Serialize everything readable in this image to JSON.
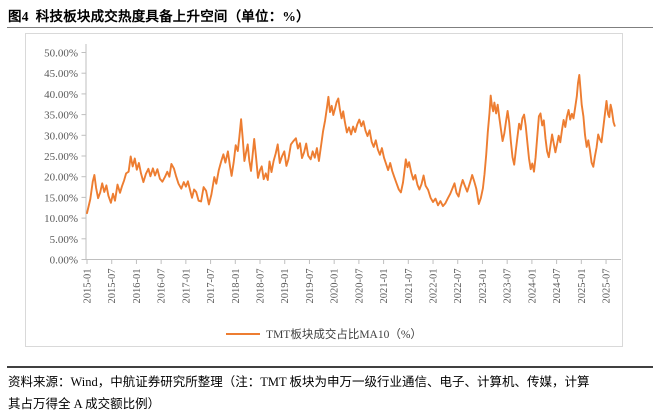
{
  "figure": {
    "title": "图4  科技板块成交热度具备上升空间（单位：%）"
  },
  "chart_data": {
    "type": "line",
    "title": "图4 科技板块成交热度具备上升空间",
    "unit": "%",
    "xlabel": "",
    "ylabel": "",
    "ylim": [
      0,
      50
    ],
    "grid": false,
    "legend_position": "bottom",
    "colors": {
      "line": "#ED7D31",
      "axis": "#BFBFBF",
      "tick_label": "#595959"
    },
    "y_ticks": [
      {
        "value": 0,
        "label": "0.00%"
      },
      {
        "value": 5,
        "label": "5.00%"
      },
      {
        "value": 10,
        "label": "10.00%"
      },
      {
        "value": 15,
        "label": "15.00%"
      },
      {
        "value": 20,
        "label": "20.00%"
      },
      {
        "value": 25,
        "label": "25.00%"
      },
      {
        "value": 30,
        "label": "30.00%"
      },
      {
        "value": 35,
        "label": "35.00%"
      },
      {
        "value": 40,
        "label": "40.00%"
      },
      {
        "value": 45,
        "label": "45.00%"
      },
      {
        "value": 50,
        "label": "50.00%"
      }
    ],
    "x_ticks": [
      {
        "month": 0,
        "label": "2015-01"
      },
      {
        "month": 6,
        "label": "2015-07"
      },
      {
        "month": 12,
        "label": "2016-01"
      },
      {
        "month": 18,
        "label": "2016-07"
      },
      {
        "month": 24,
        "label": "2017-01"
      },
      {
        "month": 30,
        "label": "2017-07"
      },
      {
        "month": 36,
        "label": "2018-01"
      },
      {
        "month": 42,
        "label": "2018-07"
      },
      {
        "month": 48,
        "label": "2019-01"
      },
      {
        "month": 54,
        "label": "2019-07"
      },
      {
        "month": 60,
        "label": "2020-01"
      },
      {
        "month": 66,
        "label": "2020-07"
      },
      {
        "month": 72,
        "label": "2021-01"
      },
      {
        "month": 78,
        "label": "2021-07"
      },
      {
        "month": 84,
        "label": "2022-01"
      },
      {
        "month": 90,
        "label": "2022-07"
      },
      {
        "month": 96,
        "label": "2023-01"
      },
      {
        "month": 102,
        "label": "2023-07"
      },
      {
        "month": 108,
        "label": "2024-01"
      },
      {
        "month": 114,
        "label": "2024-07"
      },
      {
        "month": 120,
        "label": "2025-01"
      },
      {
        "month": 126,
        "label": "2025-07"
      }
    ],
    "series": [
      {
        "name": "TMT板块成交占比MA10（%）",
        "color": "#ED7D31",
        "x_unit": "months since 2015-01",
        "points": [
          [
            0,
            11.2
          ],
          [
            0.8,
            14.6
          ],
          [
            1.4,
            18.9
          ],
          [
            1.8,
            20.4
          ],
          [
            2.2,
            17.3
          ],
          [
            2.7,
            14.8
          ],
          [
            3.2,
            16.2
          ],
          [
            3.7,
            18.4
          ],
          [
            4.2,
            16.3
          ],
          [
            4.7,
            17.9
          ],
          [
            5.2,
            15.4
          ],
          [
            5.8,
            13.7
          ],
          [
            6.3,
            15.9
          ],
          [
            6.8,
            14.2
          ],
          [
            7.4,
            18.1
          ],
          [
            8,
            16.1
          ],
          [
            8.5,
            17.7
          ],
          [
            9,
            19.1
          ],
          [
            9.5,
            20.8
          ],
          [
            10.1,
            21.2
          ],
          [
            10.6,
            24.9
          ],
          [
            11.1,
            22.5
          ],
          [
            11.6,
            24.4
          ],
          [
            12.1,
            21.7
          ],
          [
            12.6,
            23.3
          ],
          [
            13.1,
            20.8
          ],
          [
            13.7,
            18.7
          ],
          [
            14.3,
            20.7
          ],
          [
            14.9,
            21.9
          ],
          [
            15.4,
            20.1
          ],
          [
            16,
            22
          ],
          [
            16.5,
            20.3
          ],
          [
            17.1,
            21.8
          ],
          [
            17.7,
            19.5
          ],
          [
            18.3,
            18.8
          ],
          [
            18.9,
            19.9
          ],
          [
            19.5,
            21.2
          ],
          [
            20,
            20
          ],
          [
            20.5,
            23.1
          ],
          [
            21.1,
            22
          ],
          [
            21.6,
            20.2
          ],
          [
            22.2,
            18.3
          ],
          [
            22.9,
            17.1
          ],
          [
            23.5,
            18.7
          ],
          [
            24,
            17.6
          ],
          [
            24.5,
            18.9
          ],
          [
            25,
            16.8
          ],
          [
            25.5,
            14.9
          ],
          [
            26,
            16.9
          ],
          [
            26.5,
            16.3
          ],
          [
            27.1,
            14.2
          ],
          [
            27.7,
            14
          ],
          [
            28.3,
            17.5
          ],
          [
            28.9,
            16.6
          ],
          [
            29.6,
            13.3
          ],
          [
            30.2,
            15.7
          ],
          [
            30.9,
            19.9
          ],
          [
            31.4,
            18.3
          ],
          [
            32,
            21.6
          ],
          [
            32.6,
            23.8
          ],
          [
            33.1,
            25.4
          ],
          [
            33.6,
            23.4
          ],
          [
            34.2,
            26.1
          ],
          [
            34.7,
            22.7
          ],
          [
            35.1,
            20.2
          ],
          [
            35.6,
            23.5
          ],
          [
            36.1,
            27.6
          ],
          [
            36.6,
            26.2
          ],
          [
            37,
            29.7
          ],
          [
            37.4,
            33.9
          ],
          [
            37.8,
            29.3
          ],
          [
            38.2,
            23.8
          ],
          [
            38.6,
            25.8
          ],
          [
            39,
            27.8
          ],
          [
            39.4,
            23.9
          ],
          [
            39.8,
            21.4
          ],
          [
            40.2,
            25.2
          ],
          [
            40.6,
            29.1
          ],
          [
            41,
            25.1
          ],
          [
            41.5,
            19.7
          ],
          [
            42,
            21.6
          ],
          [
            42.4,
            22.5
          ],
          [
            42.9,
            19.4
          ],
          [
            43.4,
            20.8
          ],
          [
            43.9,
            19.2
          ],
          [
            44.3,
            23.7
          ],
          [
            44.8,
            21.1
          ],
          [
            45.3,
            23.8
          ],
          [
            45.8,
            25.6
          ],
          [
            46.3,
            27.8
          ],
          [
            46.8,
            23.3
          ],
          [
            47.3,
            24.8
          ],
          [
            47.9,
            26.1
          ],
          [
            48.4,
            22.6
          ],
          [
            48.9,
            24.2
          ],
          [
            49.5,
            27.8
          ],
          [
            50.1,
            28.6
          ],
          [
            50.7,
            29.3
          ],
          [
            51.2,
            26.8
          ],
          [
            51.7,
            28.1
          ],
          [
            52.2,
            24.5
          ],
          [
            52.7,
            25.9
          ],
          [
            53.2,
            28
          ],
          [
            53.7,
            25.1
          ],
          [
            54.3,
            24.2
          ],
          [
            54.8,
            26.1
          ],
          [
            55.3,
            24.6
          ],
          [
            55.8,
            26.9
          ],
          [
            56.3,
            23.8
          ],
          [
            56.8,
            27.4
          ],
          [
            57.3,
            30.9
          ],
          [
            57.8,
            33.6
          ],
          [
            58.3,
            37.1
          ],
          [
            58.6,
            39.3
          ],
          [
            59,
            35.6
          ],
          [
            59.4,
            37.1
          ],
          [
            59.8,
            34.9
          ],
          [
            60.2,
            36.4
          ],
          [
            60.6,
            38
          ],
          [
            61,
            38.9
          ],
          [
            61.4,
            36.2
          ],
          [
            61.8,
            34.1
          ],
          [
            62.2,
            35.8
          ],
          [
            62.6,
            33.2
          ],
          [
            63.1,
            30.7
          ],
          [
            63.6,
            31.9
          ],
          [
            64.1,
            30.2
          ],
          [
            64.6,
            32.1
          ],
          [
            65.1,
            30.8
          ],
          [
            65.6,
            32.6
          ],
          [
            66.1,
            33.8
          ],
          [
            66.6,
            32.2
          ],
          [
            67.1,
            33.4
          ],
          [
            67.6,
            31.1
          ],
          [
            68.1,
            29.8
          ],
          [
            68.6,
            31.2
          ],
          [
            69.1,
            28.4
          ],
          [
            69.6,
            27.2
          ],
          [
            70.1,
            28.8
          ],
          [
            70.6,
            26.6
          ],
          [
            71.1,
            25.3
          ],
          [
            71.6,
            26.9
          ],
          [
            72.1,
            24.6
          ],
          [
            72.6,
            23.1
          ],
          [
            73.1,
            21.6
          ],
          [
            73.6,
            23.3
          ],
          [
            74.1,
            21.4
          ],
          [
            74.6,
            19.9
          ],
          [
            75.1,
            18.5
          ],
          [
            75.7,
            16.9
          ],
          [
            76.2,
            16.2
          ],
          [
            76.7,
            18.6
          ],
          [
            77.1,
            21.7
          ],
          [
            77.4,
            24.2
          ],
          [
            77.8,
            22.3
          ],
          [
            78.2,
            23.5
          ],
          [
            78.7,
            21.1
          ],
          [
            79.2,
            19.3
          ],
          [
            79.7,
            20.4
          ],
          [
            80.2,
            18.1
          ],
          [
            80.7,
            16.9
          ],
          [
            81.2,
            18.2
          ],
          [
            81.7,
            20.3
          ],
          [
            82.2,
            17.8
          ],
          [
            82.8,
            16.8
          ],
          [
            83.4,
            14.9
          ],
          [
            84,
            13.9
          ],
          [
            84.6,
            14.7
          ],
          [
            85.2,
            13.1
          ],
          [
            85.8,
            14.1
          ],
          [
            86.4,
            12.9
          ],
          [
            87,
            13.6
          ],
          [
            87.6,
            14.8
          ],
          [
            88.2,
            15.9
          ],
          [
            88.8,
            17.4
          ],
          [
            89.2,
            18.4
          ],
          [
            89.7,
            16.1
          ],
          [
            90.2,
            15.2
          ],
          [
            90.7,
            17.5
          ],
          [
            91.2,
            19.2
          ],
          [
            91.7,
            17.9
          ],
          [
            92.3,
            16.4
          ],
          [
            92.9,
            18.3
          ],
          [
            93.5,
            20.4
          ],
          [
            94,
            18.9
          ],
          [
            94.5,
            17.1
          ],
          [
            95.1,
            13.4
          ],
          [
            95.6,
            14.8
          ],
          [
            96.1,
            17.2
          ],
          [
            96.5,
            20.6
          ],
          [
            96.9,
            25.3
          ],
          [
            97.3,
            30.8
          ],
          [
            97.7,
            35.4
          ],
          [
            98,
            39.6
          ],
          [
            98.3,
            37.2
          ],
          [
            98.6,
            35.8
          ],
          [
            98.9,
            37.9
          ],
          [
            99.3,
            35.3
          ],
          [
            99.7,
            37.4
          ],
          [
            100.1,
            34.1
          ],
          [
            100.5,
            31.3
          ],
          [
            100.9,
            28.6
          ],
          [
            101.3,
            30.4
          ],
          [
            101.7,
            33.2
          ],
          [
            102.1,
            35.9
          ],
          [
            102.5,
            33.1
          ],
          [
            102.9,
            28.4
          ],
          [
            103.3,
            24.7
          ],
          [
            103.7,
            22.9
          ],
          [
            104.1,
            26.3
          ],
          [
            104.5,
            29.7
          ],
          [
            104.9,
            32.8
          ],
          [
            105.3,
            31.4
          ],
          [
            105.7,
            34.1
          ],
          [
            106.1,
            35
          ],
          [
            106.5,
            32.3
          ],
          [
            106.9,
            28.2
          ],
          [
            107.3,
            24.4
          ],
          [
            107.7,
            21.8
          ],
          [
            108.1,
            23.2
          ],
          [
            108.5,
            21.2
          ],
          [
            108.9,
            24.7
          ],
          [
            109.3,
            29.8
          ],
          [
            109.7,
            34.6
          ],
          [
            110.1,
            35.3
          ],
          [
            110.5,
            32.4
          ],
          [
            110.9,
            33.6
          ],
          [
            111.3,
            29.2
          ],
          [
            111.7,
            26.1
          ],
          [
            112.1,
            24.7
          ],
          [
            112.5,
            27.4
          ],
          [
            112.9,
            30.2
          ],
          [
            113.3,
            28.1
          ],
          [
            113.7,
            25.9
          ],
          [
            114.1,
            27.8
          ],
          [
            114.5,
            29.9
          ],
          [
            114.9,
            28.3
          ],
          [
            115.3,
            31.3
          ],
          [
            115.7,
            33.7
          ],
          [
            116.1,
            32
          ],
          [
            116.5,
            34.5
          ],
          [
            116.9,
            36.1
          ],
          [
            117.3,
            33.8
          ],
          [
            117.7,
            35.2
          ],
          [
            118.1,
            34.1
          ],
          [
            118.5,
            36.6
          ],
          [
            118.9,
            39.4
          ],
          [
            119.2,
            42.6
          ],
          [
            119.5,
            44.6
          ],
          [
            119.8,
            41.1
          ],
          [
            120.1,
            37.4
          ],
          [
            120.5,
            34.6
          ],
          [
            120.9,
            30.1
          ],
          [
            121.3,
            27.2
          ],
          [
            121.7,
            28.8
          ],
          [
            122.1,
            26.3
          ],
          [
            122.5,
            23.4
          ],
          [
            122.9,
            22.4
          ],
          [
            123.3,
            24.9
          ],
          [
            123.7,
            27.1
          ],
          [
            124.1,
            30.2
          ],
          [
            124.5,
            29
          ],
          [
            124.9,
            28.3
          ],
          [
            125.3,
            31.7
          ],
          [
            125.7,
            34.9
          ],
          [
            126.1,
            38.3
          ],
          [
            126.5,
            35.1
          ],
          [
            126.8,
            34.4
          ],
          [
            127.1,
            37.4
          ],
          [
            127.4,
            36.1
          ],
          [
            127.8,
            33.2
          ],
          [
            128.1,
            32.3
          ]
        ]
      }
    ]
  },
  "legend": {
    "label": "TMT板块成交占比MA10（%）"
  },
  "footer": {
    "note_line1": "资料来源：Wind，中航证券研究所整理（注：TMT 板块为申万一级行业通信、电子、计算机、传媒，计算",
    "note_line2": "其占万得全 A 成交额比例）"
  }
}
